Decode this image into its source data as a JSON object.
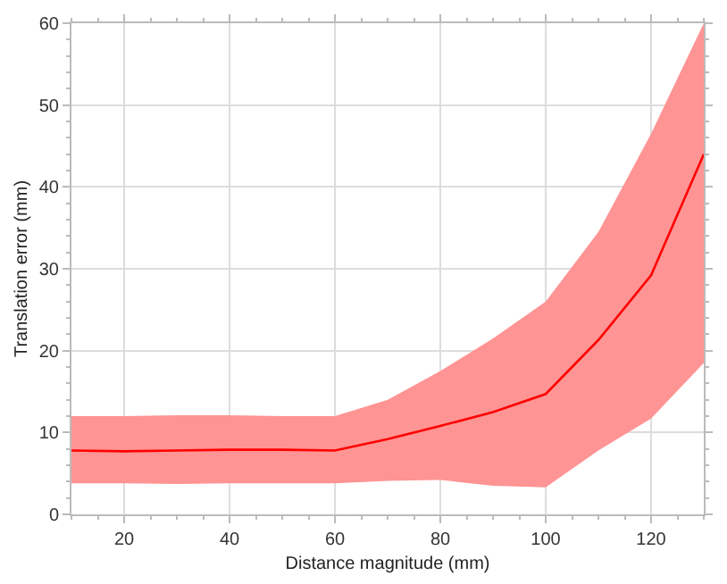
{
  "chart_data": {
    "type": "line",
    "xlabel": "Distance magnitude (mm)",
    "ylabel": "Translation error (mm)",
    "x": [
      10,
      20,
      30,
      40,
      50,
      60,
      70,
      80,
      90,
      100,
      110,
      120,
      130
    ],
    "series": [
      {
        "color": "#ff0000",
        "values": [
          7.8,
          7.7,
          7.8,
          7.9,
          7.9,
          7.8,
          9.2,
          10.8,
          12.5,
          14.7,
          21.3,
          29.2,
          44
        ],
        "lower": [
          3.8,
          3.8,
          3.7,
          3.8,
          3.8,
          3.8,
          4.1,
          4.2,
          3.5,
          3.3,
          7.8,
          11.7,
          18.5
        ],
        "upper": [
          12,
          12,
          12.1,
          12.1,
          12,
          12,
          14,
          17.5,
          21.5,
          26,
          34.5,
          46.5,
          60
        ]
      }
    ],
    "xlim": [
      10,
      130
    ],
    "xticks": [
      20,
      40,
      60,
      80,
      100,
      120
    ],
    "ylim": [
      0,
      60
    ],
    "yticks": [
      0,
      10,
      20,
      30,
      40,
      50,
      60
    ],
    "grid": true,
    "marker": "none",
    "line_style": "solid"
  }
}
